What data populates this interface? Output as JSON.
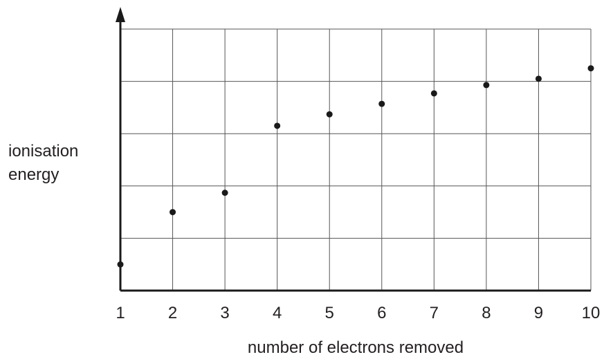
{
  "chart_data": {
    "type": "scatter",
    "title": "",
    "xlabel": "number of electrons removed",
    "ylabel_lines": [
      "ionisation",
      "energy"
    ],
    "x": [
      1,
      2,
      3,
      4,
      5,
      6,
      7,
      8,
      9,
      10
    ],
    "y": [
      0.5,
      1.5,
      1.87,
      3.15,
      3.37,
      3.57,
      3.77,
      3.93,
      4.05,
      4.25
    ],
    "x_ticks": [
      "1",
      "2",
      "3",
      "4",
      "5",
      "6",
      "7",
      "8",
      "9",
      "10"
    ],
    "xlim": [
      1,
      10
    ],
    "ylim": [
      0,
      5
    ],
    "y_ticks_labeled": false,
    "grid": true,
    "legend": "none",
    "colors": {
      "point": "#1a1a1a",
      "grid": "#555555",
      "axis": "#1a1a1a",
      "text": "#231f20"
    }
  }
}
